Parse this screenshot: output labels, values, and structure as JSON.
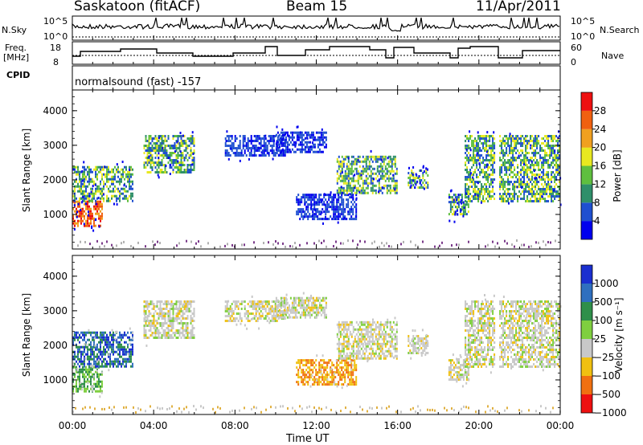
{
  "header": {
    "station": "Saskatoon (fitACF)",
    "beam": "Beam 15",
    "date": "11/Apr/2011"
  },
  "panels": {
    "nsky": {
      "label": "N.Sky",
      "ticks_left": [
        "10^5",
        "10^0"
      ],
      "ticks_right": [
        "10^5",
        "10^0"
      ],
      "right_label": "N.Search"
    },
    "freq": {
      "label_line1": "Freq.",
      "label_line2": "[MHz]",
      "ticks_left": [
        "18",
        "8"
      ],
      "ticks_right": [
        "60",
        "0"
      ],
      "right_label": "Nave"
    },
    "cpid": {
      "label": "CPID",
      "value": "normalsound (fast) -157"
    }
  },
  "chart_data": [
    {
      "type": "heatmap",
      "name": "power",
      "ylabel": "Slant Range [km]",
      "y_ticks": [
        "1000",
        "2000",
        "3000",
        "4000"
      ],
      "ylim": [
        0,
        4600
      ],
      "colorbar": {
        "label": "Power [dB]",
        "ticks": [
          "4",
          "8",
          "12",
          "16",
          "20",
          "24",
          "28"
        ],
        "colors": [
          "#0000ee",
          "#1f4fd0",
          "#2f8f6a",
          "#5fbf3f",
          "#e8e820",
          "#f0a020",
          "#f06010",
          "#ee1010"
        ]
      },
      "regions": [
        {
          "t0": 0.0,
          "t1": 1.5,
          "r0": 700,
          "r1": 1400,
          "level": "high"
        },
        {
          "t0": 0.0,
          "t1": 3.0,
          "r0": 1400,
          "r1": 2400,
          "level": "mid"
        },
        {
          "t0": 3.5,
          "t1": 6.0,
          "r0": 2200,
          "r1": 3300,
          "level": "mid"
        },
        {
          "t0": 7.5,
          "t1": 10.5,
          "r0": 2700,
          "r1": 3300,
          "level": "low"
        },
        {
          "t0": 10.0,
          "t1": 12.5,
          "r0": 2800,
          "r1": 3400,
          "level": "low"
        },
        {
          "t0": 11.0,
          "t1": 14.0,
          "r0": 900,
          "r1": 1600,
          "level": "low"
        },
        {
          "t0": 13.0,
          "t1": 16.0,
          "r0": 1600,
          "r1": 2700,
          "level": "mid"
        },
        {
          "t0": 16.5,
          "t1": 17.5,
          "r0": 1800,
          "r1": 2300,
          "level": "mid"
        },
        {
          "t0": 18.5,
          "t1": 19.5,
          "r0": 1000,
          "r1": 1600,
          "level": "mid"
        },
        {
          "t0": 19.3,
          "t1": 20.8,
          "r0": 1400,
          "r1": 3300,
          "level": "mid"
        },
        {
          "t0": 21.0,
          "t1": 24.0,
          "r0": 1400,
          "r1": 3300,
          "level": "mid"
        }
      ]
    },
    {
      "type": "heatmap",
      "name": "velocity",
      "ylabel": "Slant Range [km]",
      "y_ticks": [
        "1000",
        "2000",
        "3000",
        "4000"
      ],
      "ylim": [
        0,
        4600
      ],
      "colorbar": {
        "label": "Velocity [m s⁻¹]",
        "ticks": [
          "1000",
          "500",
          "100",
          "25",
          "−25",
          "−100",
          "−500",
          "−1000"
        ],
        "colors": [
          "#1a2fd0",
          "#2f6fbf",
          "#2f8f4a",
          "#7fcf3f",
          "#c8c8c8",
          "#f0c010",
          "#f07010",
          "#ee1010"
        ]
      },
      "regions": [
        {
          "t0": 0.0,
          "t1": 1.5,
          "r0": 700,
          "r1": 1400,
          "level": "pos-mid"
        },
        {
          "t0": 0.0,
          "t1": 3.0,
          "r0": 1400,
          "r1": 2400,
          "level": "pos-high"
        },
        {
          "t0": 3.5,
          "t1": 6.0,
          "r0": 2200,
          "r1": 3300,
          "level": "zero"
        },
        {
          "t0": 7.5,
          "t1": 10.5,
          "r0": 2700,
          "r1": 3300,
          "level": "zero"
        },
        {
          "t0": 10.0,
          "t1": 12.5,
          "r0": 2800,
          "r1": 3400,
          "level": "zero"
        },
        {
          "t0": 11.0,
          "t1": 14.0,
          "r0": 900,
          "r1": 1600,
          "level": "neg-mid"
        },
        {
          "t0": 13.0,
          "t1": 16.0,
          "r0": 1600,
          "r1": 2700,
          "level": "zero"
        },
        {
          "t0": 16.5,
          "t1": 17.5,
          "r0": 1800,
          "r1": 2300,
          "level": "zero"
        },
        {
          "t0": 18.5,
          "t1": 19.5,
          "r0": 1000,
          "r1": 1600,
          "level": "zero"
        },
        {
          "t0": 19.3,
          "t1": 20.8,
          "r0": 1400,
          "r1": 3300,
          "level": "zero"
        },
        {
          "t0": 21.0,
          "t1": 24.0,
          "r0": 1400,
          "r1": 3300,
          "level": "zero"
        }
      ]
    }
  ],
  "x_axis": {
    "label": "Time UT",
    "ticks": [
      "00:00",
      "04:00",
      "08:00",
      "12:00",
      "16:00",
      "20:00",
      "00:00"
    ]
  }
}
